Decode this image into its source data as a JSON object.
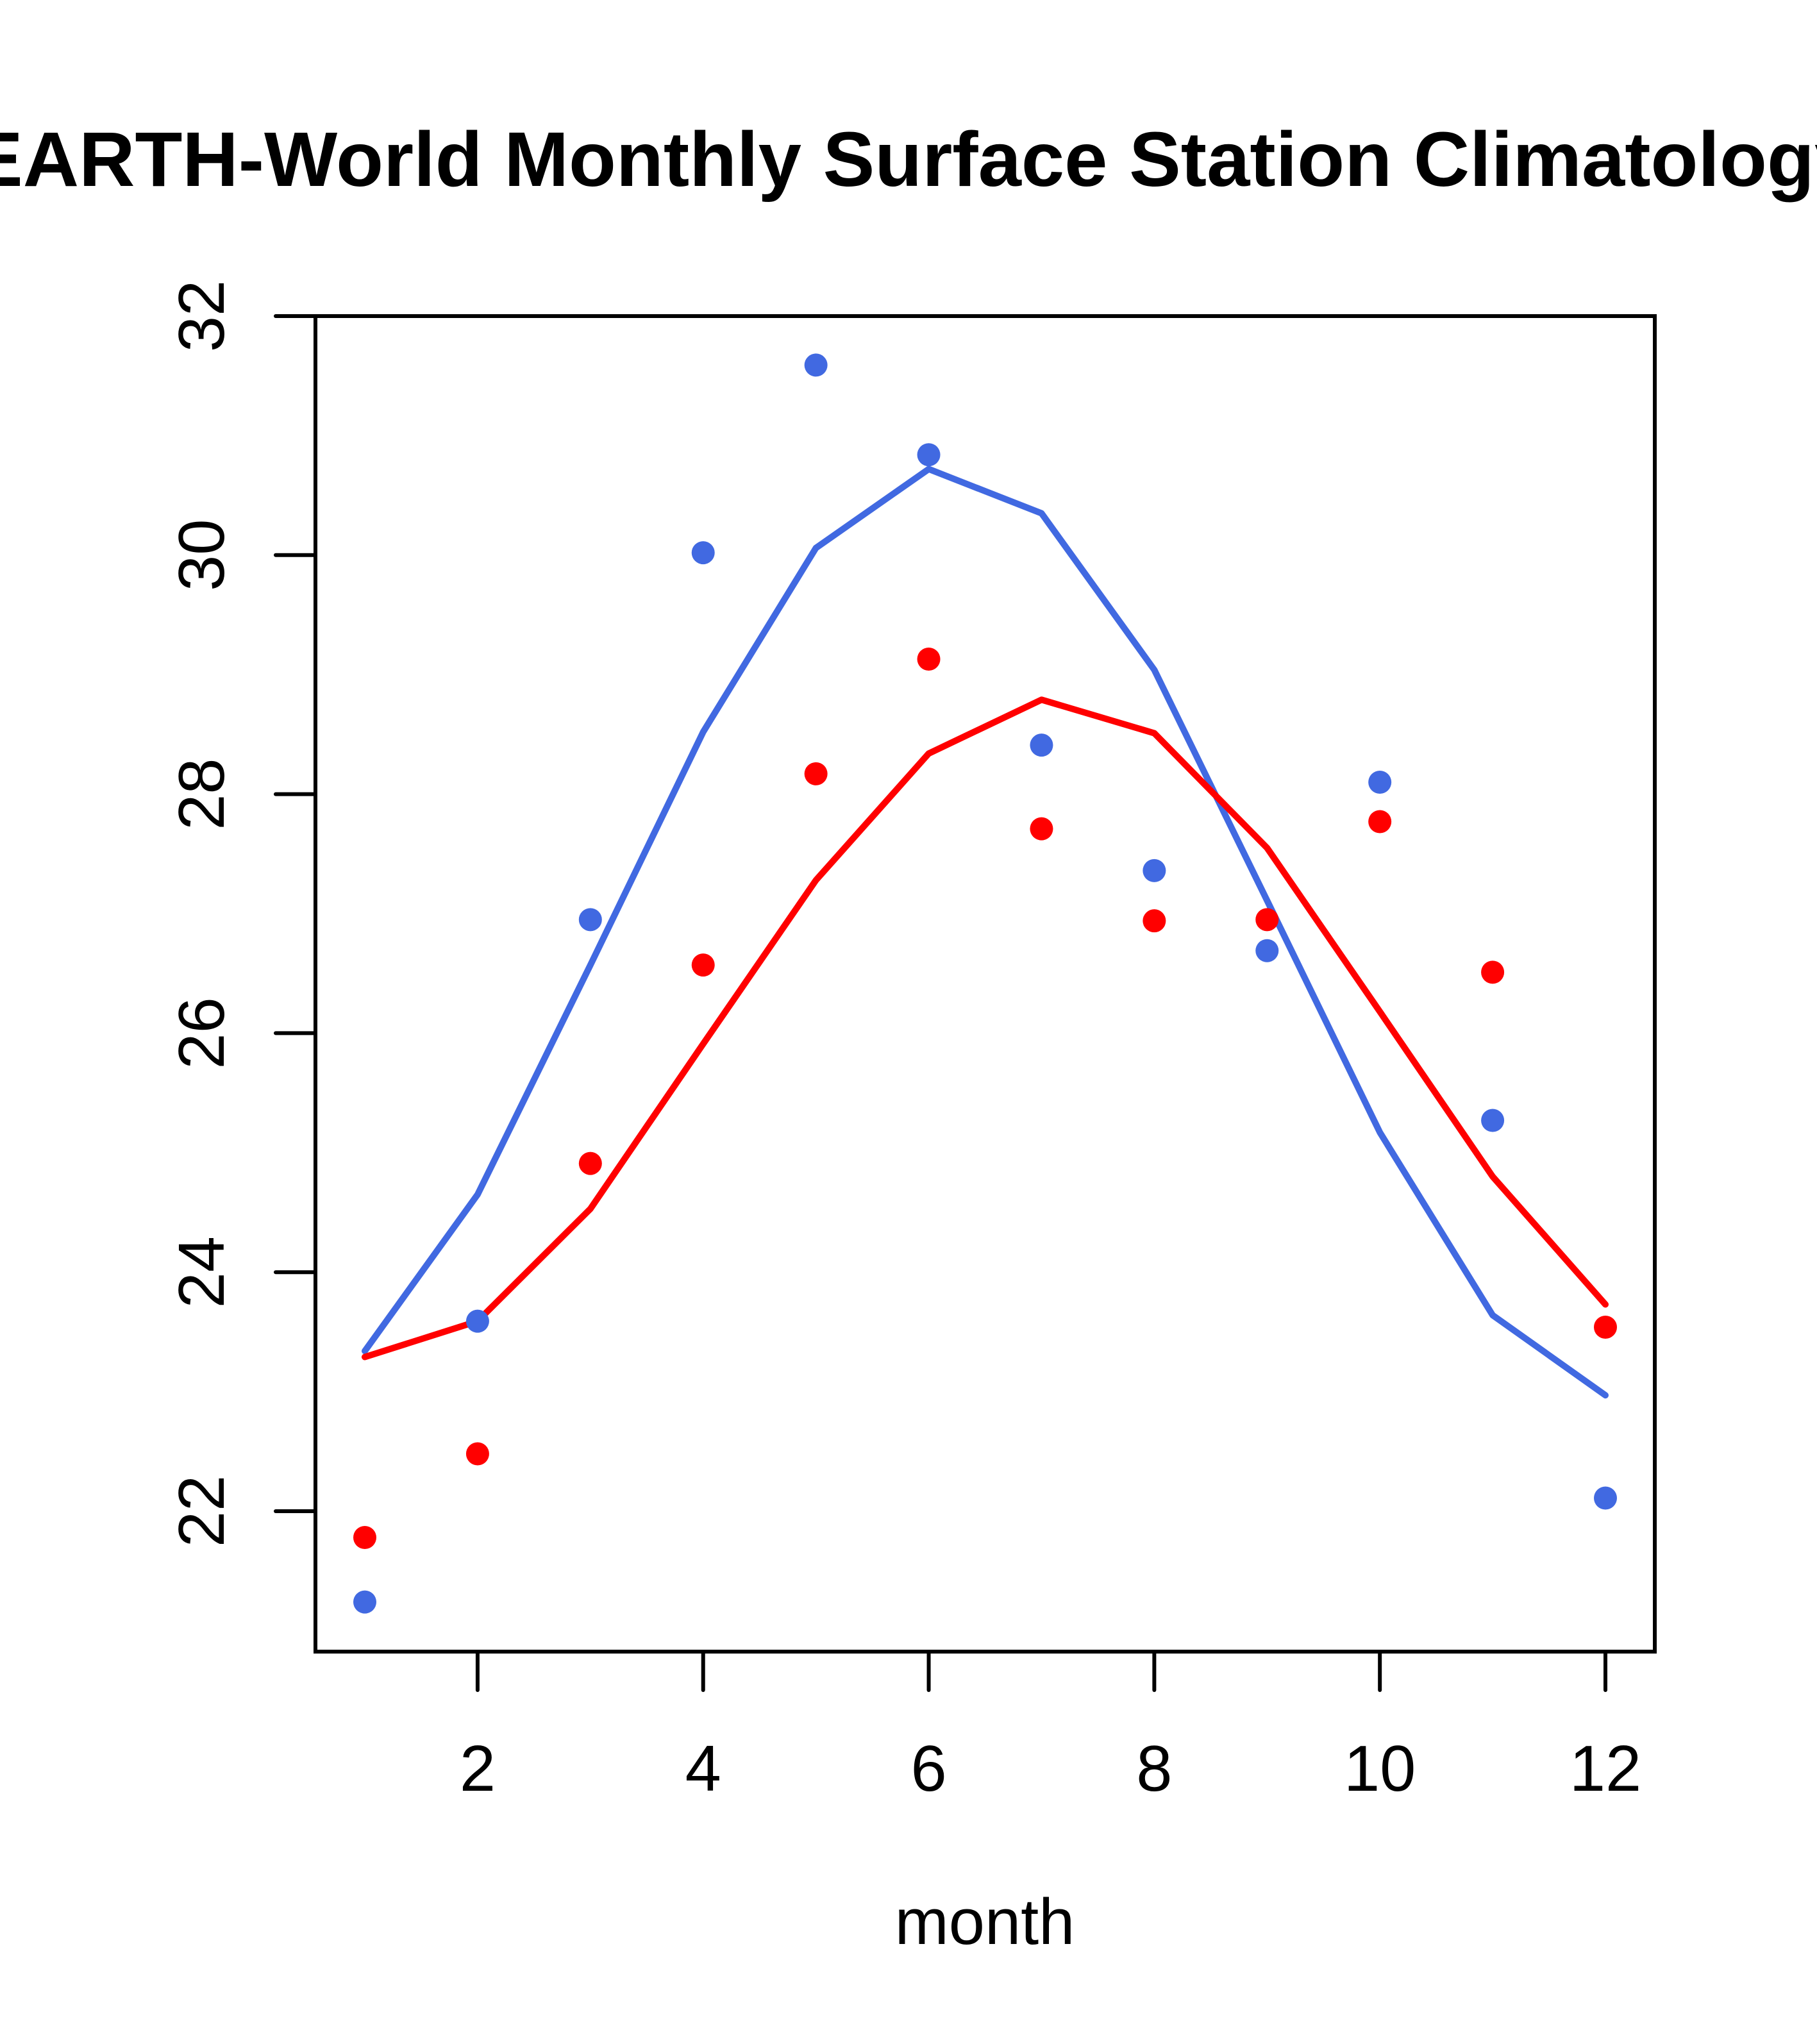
{
  "chart_data": {
    "type": "scatter",
    "title": "EARTH-World Monthly Surface Station Climatology",
    "xlabel": "month",
    "ylabel": "",
    "xlim": [
      0.56,
      12.44
    ],
    "ylim": [
      20.85,
      32
    ],
    "x_ticks": [
      2,
      4,
      6,
      8,
      10,
      12
    ],
    "x_tick_labels": [
      "2",
      "4",
      "6",
      "8",
      "10",
      "12"
    ],
    "y_ticks": [
      22,
      24,
      26,
      28,
      30,
      32
    ],
    "y_tick_labels": [
      "22",
      "24",
      "26",
      "28",
      "30",
      "32"
    ],
    "grid": false,
    "legend": null,
    "x": [
      1,
      2,
      3,
      4,
      5,
      6,
      7,
      8,
      9,
      10,
      11,
      12
    ],
    "series": [
      {
        "name": "blue points",
        "kind": "points",
        "color": "#4169E1",
        "values": [
          21.24,
          23.59,
          26.95,
          30.02,
          31.59,
          30.84,
          28.41,
          27.36,
          26.69,
          28.1,
          25.27,
          22.11
        ]
      },
      {
        "name": "red points",
        "kind": "points",
        "color": "#FF0000",
        "values": [
          21.78,
          22.48,
          24.91,
          26.57,
          28.17,
          29.13,
          27.71,
          26.94,
          26.95,
          27.77,
          26.51,
          23.54
        ]
      },
      {
        "name": "blue line",
        "kind": "line",
        "color": "#4169E1",
        "values": [
          23.34,
          24.65,
          26.57,
          28.52,
          30.06,
          30.72,
          30.35,
          29.04,
          27.11,
          25.17,
          23.64,
          22.97
        ]
      },
      {
        "name": "red line",
        "kind": "line",
        "color": "#FF0000",
        "values": [
          23.29,
          23.59,
          24.53,
          25.91,
          27.28,
          28.34,
          28.79,
          28.51,
          27.55,
          26.18,
          24.8,
          23.73
        ]
      }
    ]
  }
}
